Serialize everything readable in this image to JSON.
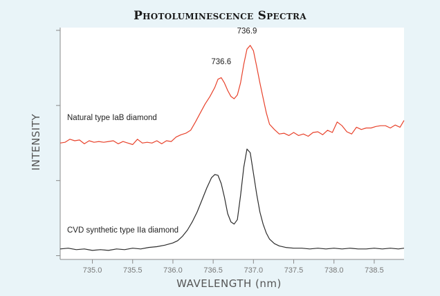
{
  "chart_data": {
    "type": "line",
    "title": "Photoluminescence Spectra",
    "xlabel": "WAVELENGTH (nm)",
    "ylabel": "INTENSITY",
    "xlim": [
      734.6,
      738.87
    ],
    "ylim": [
      -0.05,
      3.0
    ],
    "xticks": [
      "735.0",
      "735.5",
      "736.0",
      "736.5",
      "737.0",
      "737.5",
      "738.0",
      "738.5"
    ],
    "xtick_values": [
      735.0,
      735.5,
      736.0,
      736.5,
      737.0,
      737.5,
      738.0,
      738.5
    ],
    "ytick_values": [
      0,
      1,
      2,
      3
    ],
    "grid": false,
    "annotations": [
      {
        "text": "736.6",
        "x": 736.6,
        "y": 2.55
      },
      {
        "text": "736.9",
        "x": 736.92,
        "y": 2.96
      }
    ],
    "series": [
      {
        "name": "Natural type IaB diamond",
        "color": "#e8412a",
        "x": [
          734.6,
          734.66,
          734.72,
          734.78,
          734.84,
          734.9,
          734.96,
          735.02,
          735.08,
          735.14,
          735.2,
          735.26,
          735.32,
          735.38,
          735.44,
          735.5,
          735.56,
          735.62,
          735.68,
          735.74,
          735.8,
          735.86,
          735.92,
          735.98,
          736.04,
          736.1,
          736.16,
          736.22,
          736.28,
          736.34,
          736.4,
          736.46,
          736.52,
          736.56,
          736.6,
          736.64,
          736.68,
          736.72,
          736.76,
          736.8,
          736.84,
          736.88,
          736.92,
          736.96,
          737.0,
          737.04,
          737.08,
          737.12,
          737.16,
          737.2,
          737.26,
          737.32,
          737.38,
          737.44,
          737.5,
          737.56,
          737.62,
          737.68,
          737.74,
          737.8,
          737.86,
          737.92,
          737.98,
          738.04,
          738.1,
          738.16,
          738.22,
          738.28,
          738.34,
          738.4,
          738.46,
          738.52,
          738.58,
          738.64,
          738.7,
          738.76,
          738.82,
          738.87
        ],
        "y": [
          1.5,
          1.51,
          1.55,
          1.53,
          1.54,
          1.49,
          1.53,
          1.51,
          1.52,
          1.51,
          1.52,
          1.53,
          1.49,
          1.52,
          1.5,
          1.48,
          1.55,
          1.5,
          1.51,
          1.5,
          1.53,
          1.49,
          1.53,
          1.52,
          1.58,
          1.61,
          1.63,
          1.67,
          1.78,
          1.9,
          2.02,
          2.12,
          2.24,
          2.35,
          2.37,
          2.3,
          2.2,
          2.12,
          2.09,
          2.14,
          2.3,
          2.55,
          2.75,
          2.8,
          2.73,
          2.52,
          2.3,
          2.1,
          1.9,
          1.75,
          1.68,
          1.62,
          1.63,
          1.6,
          1.64,
          1.6,
          1.62,
          1.59,
          1.64,
          1.65,
          1.61,
          1.67,
          1.64,
          1.78,
          1.73,
          1.65,
          1.62,
          1.71,
          1.68,
          1.7,
          1.7,
          1.72,
          1.73,
          1.73,
          1.7,
          1.74,
          1.71,
          1.8
        ]
      },
      {
        "name": "CVD synthetic type IIa diamond",
        "color": "#2b2b2b",
        "x": [
          734.6,
          734.7,
          734.8,
          734.9,
          735.0,
          735.1,
          735.2,
          735.3,
          735.4,
          735.5,
          735.6,
          735.7,
          735.8,
          735.9,
          736.0,
          736.06,
          736.12,
          736.18,
          736.24,
          736.3,
          736.36,
          736.42,
          736.48,
          736.52,
          736.56,
          736.6,
          736.64,
          736.68,
          736.72,
          736.76,
          736.8,
          736.84,
          736.88,
          736.92,
          736.96,
          737.0,
          737.04,
          737.08,
          737.12,
          737.16,
          737.2,
          737.26,
          737.32,
          737.4,
          737.5,
          737.6,
          737.7,
          737.8,
          737.9,
          738.0,
          738.1,
          738.2,
          738.3,
          738.4,
          738.5,
          738.6,
          738.7,
          738.8,
          738.87
        ],
        "y": [
          0.09,
          0.1,
          0.08,
          0.09,
          0.07,
          0.08,
          0.07,
          0.09,
          0.08,
          0.1,
          0.09,
          0.11,
          0.12,
          0.14,
          0.17,
          0.2,
          0.26,
          0.34,
          0.45,
          0.58,
          0.74,
          0.9,
          1.04,
          1.08,
          1.07,
          0.96,
          0.78,
          0.56,
          0.45,
          0.42,
          0.48,
          0.8,
          1.18,
          1.42,
          1.37,
          1.1,
          0.82,
          0.58,
          0.42,
          0.3,
          0.22,
          0.16,
          0.13,
          0.11,
          0.1,
          0.1,
          0.09,
          0.1,
          0.09,
          0.1,
          0.09,
          0.1,
          0.09,
          0.09,
          0.1,
          0.09,
          0.1,
          0.09,
          0.1
        ]
      }
    ],
    "series_labels": [
      "Natural type IaB diamond",
      "CVD synthetic type IIa diamond"
    ]
  }
}
